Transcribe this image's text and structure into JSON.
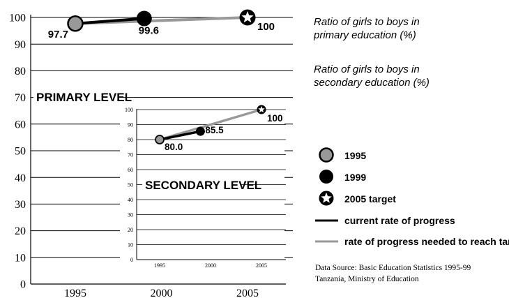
{
  "chart_data": [
    {
      "type": "line",
      "panel": "primary",
      "annotation": "PRIMARY LEVEL",
      "ylim": [
        0,
        100
      ],
      "y_ticks": [
        "0",
        "10",
        "20",
        "30",
        "40",
        "50",
        "60",
        "70",
        "80",
        "90",
        "100"
      ],
      "x_ticks": [
        "1995",
        "2000",
        "2005"
      ],
      "points": [
        {
          "x": 1995,
          "y": 97.7,
          "label": "97.7",
          "marker": "1995"
        },
        {
          "x": 1999,
          "y": 99.6,
          "label": "99.6",
          "marker": "1999"
        },
        {
          "x": 2005,
          "y": 100,
          "label": "100",
          "marker": "2005 target"
        }
      ],
      "series": [
        {
          "name": "current rate of progress",
          "x": [
            1995,
            1999
          ],
          "values": [
            97.7,
            99.6
          ]
        },
        {
          "name": "rate of progress needed to reach target",
          "x": [
            1995,
            2005
          ],
          "values": [
            97.7,
            100
          ]
        }
      ]
    },
    {
      "type": "line",
      "panel": "secondary",
      "annotation": "SECONDARY LEVEL",
      "ylim": [
        0,
        100
      ],
      "y_ticks": [
        "0",
        "10",
        "20",
        "30",
        "40",
        "50",
        "60",
        "70",
        "80",
        "90",
        "100"
      ],
      "x_ticks": [
        "1995",
        "2000",
        "2005"
      ],
      "points": [
        {
          "x": 1995,
          "y": 80.0,
          "label": "80.0",
          "marker": "1995"
        },
        {
          "x": 1999,
          "y": 85.5,
          "label": "85.5",
          "marker": "1999"
        },
        {
          "x": 2005,
          "y": 100,
          "label": "100",
          "marker": "2005 target"
        }
      ],
      "series": [
        {
          "name": "current rate of progress",
          "x": [
            1995,
            1999
          ],
          "values": [
            80.0,
            85.5
          ]
        },
        {
          "name": "rate of progress needed to reach target",
          "x": [
            1995,
            2005
          ],
          "values": [
            80.0,
            100
          ]
        }
      ]
    }
  ],
  "colors": {
    "current": "#000000",
    "needed": "#999999",
    "marker_1995": "#999999",
    "marker_1999": "#000000"
  },
  "side_text": {
    "primary_caption": "Ratio of girls to boys in primary education (%)",
    "secondary_caption": "Ratio of girls to boys in secondary education (%)"
  },
  "legend": {
    "items": [
      {
        "label": "1995",
        "icon": "grey-circle-icon"
      },
      {
        "label": "1999",
        "icon": "black-circle-icon"
      },
      {
        "label": "2005 target",
        "icon": "star-circle-icon"
      },
      {
        "label": "current rate of progress",
        "icon": "black-line-icon"
      },
      {
        "label": "rate of progress needed to reach target",
        "icon": "grey-line-icon"
      }
    ]
  },
  "source": {
    "line1": "Data Source: Basic Education Statistics 1995-99",
    "line2": "Tanzania, Ministry of Education"
  }
}
